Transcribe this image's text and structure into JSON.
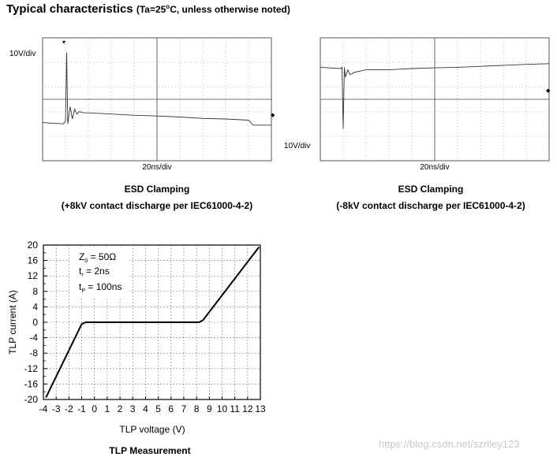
{
  "heading": {
    "title": "Typical characteristics",
    "condition_prefix": "(Ta=25",
    "condition_deg": "o",
    "condition_suffix": "C, unless otherwise noted)"
  },
  "chart_data": [
    {
      "type": "line",
      "title": "ESD Clamping",
      "subtitle": "(+8kV contact discharge per IEC61000-4-2)",
      "y_scale_label": "10V/div",
      "x_scale_label": "20ns/div",
      "grid": true,
      "x_divisions": 10,
      "y_divisions": 5,
      "series": [
        {
          "x": [
            0,
            0.9,
            1.0,
            1.05,
            1.1,
            1.2,
            1.3,
            1.4,
            1.5,
            1.6,
            1.8,
            2.0,
            3.0,
            4.0,
            5.0,
            6.0,
            7.0,
            8.0,
            9.0,
            9.2,
            9.5,
            10.0
          ],
          "y": [
            -0.95,
            -1.0,
            -0.9,
            1.9,
            -1.0,
            -0.3,
            -0.8,
            -0.4,
            -0.6,
            -0.5,
            -0.55,
            -0.55,
            -0.6,
            -0.65,
            -0.68,
            -0.72,
            -0.78,
            -0.8,
            -0.85,
            -1.05,
            -1.05,
            -1.05
          ]
        }
      ]
    },
    {
      "type": "line",
      "title": "ESD Clamping",
      "subtitle": "(-8kV contact discharge per IEC61000-4-2)",
      "y_scale_label": "10V/div",
      "x_scale_label": "20ns/div",
      "grid": true,
      "x_divisions": 10,
      "y_divisions": 5,
      "series": [
        {
          "x": [
            0,
            0.9,
            0.95,
            1.0,
            1.05,
            1.1,
            1.2,
            1.3,
            1.5,
            2.0,
            3.0,
            4.0,
            5.0,
            6.0,
            7.0,
            8.0,
            9.0,
            10.0
          ],
          "y": [
            1.3,
            1.25,
            1.3,
            -1.2,
            1.3,
            0.9,
            1.2,
            1.0,
            1.1,
            1.2,
            1.2,
            1.25,
            1.28,
            1.3,
            1.34,
            1.38,
            1.42,
            1.45
          ]
        }
      ]
    },
    {
      "type": "line",
      "title": "TLP Measurement",
      "xlabel": "TLP voltage (V)",
      "ylabel": "TLP current (A)",
      "xlim": [
        -4,
        13
      ],
      "ylim": [
        -20,
        20
      ],
      "x_ticks": [
        -4,
        -3,
        -2,
        -1,
        0,
        1,
        2,
        3,
        4,
        5,
        6,
        7,
        8,
        9,
        10,
        11,
        12,
        13
      ],
      "y_ticks": [
        20,
        16,
        12,
        8,
        4,
        0,
        -4,
        -8,
        -12,
        -16,
        -20
      ],
      "y_minor_ticks": [
        18,
        14,
        10,
        6,
        2,
        -2,
        -6,
        -10,
        -14,
        -18
      ],
      "grid": true,
      "annotations": [
        "Z0 = 50Ω",
        "tr = 2ns",
        "tp = 100ns"
      ],
      "annotation_lines": [
        {
          "main": "Z",
          "sub": "0",
          "rest": " = 50Ω"
        },
        {
          "main": "t",
          "sub": "r",
          "rest": " = 2ns"
        },
        {
          "main": "t",
          "sub": "P",
          "rest": " = 100ns"
        }
      ],
      "series": [
        {
          "x": [
            -3.8,
            -1.0,
            -0.7,
            8.2,
            8.5,
            12.9
          ],
          "y": [
            -19.5,
            -0.5,
            0,
            0,
            0.5,
            19.5
          ]
        }
      ]
    }
  ],
  "watermark": "https://blog.csdn.net/szriley123"
}
